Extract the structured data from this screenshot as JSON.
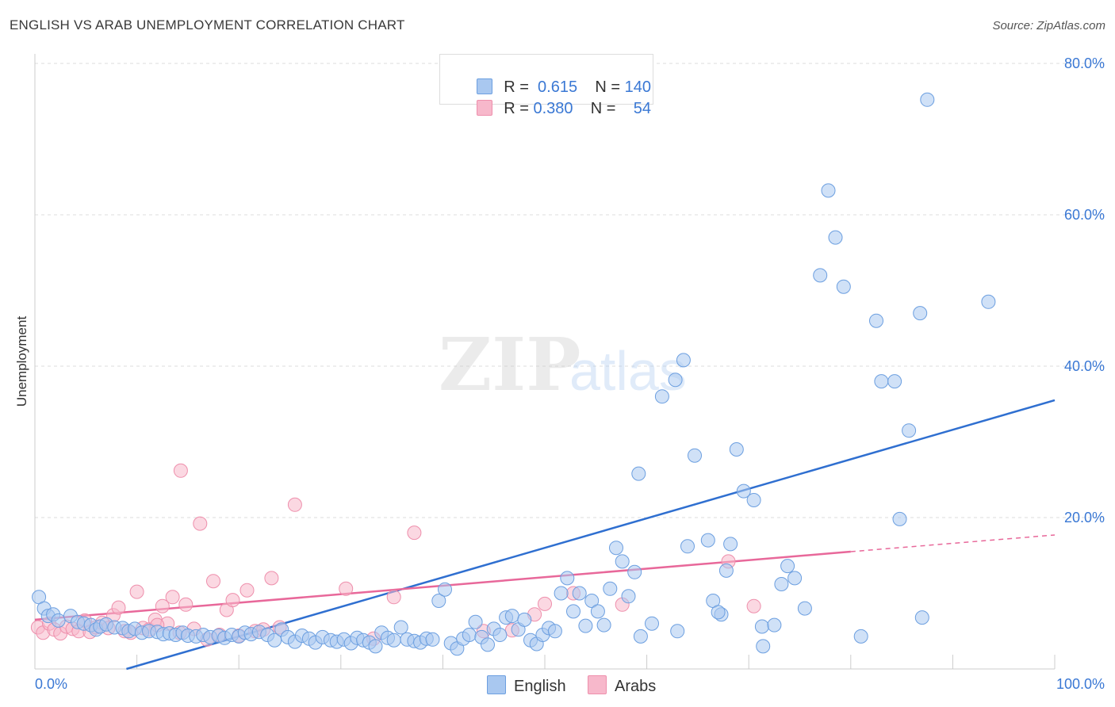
{
  "header": {
    "title": "ENGLISH VS ARAB UNEMPLOYMENT CORRELATION CHART",
    "source": "Source: ZipAtlas.com"
  },
  "watermark": {
    "zip": "ZIP",
    "atlas": "atlas"
  },
  "legend": {
    "rows": [
      {
        "r_label": "R =",
        "r_value": "0.615",
        "n_label": "N =",
        "n_value": "140"
      },
      {
        "r_label": "R =",
        "r_value": "0.380",
        "n_label": "N =",
        "n_value": "54"
      }
    ]
  },
  "bottom_legend": {
    "english": "English",
    "arabs": "Arabs"
  },
  "colors": {
    "english_fill": "#a9c8f0",
    "english_stroke": "#6c9fe0",
    "english_line": "#2f6fd0",
    "arabs_fill": "#f7b8cb",
    "arabs_stroke": "#ee8fac",
    "arabs_line": "#e8689a",
    "tick_color": "#3a78d4",
    "grid": "#dcdcdc"
  },
  "chart_data": {
    "type": "scatter",
    "title": "ENGLISH VS ARAB UNEMPLOYMENT CORRELATION CHART",
    "xlabel": "",
    "ylabel": "Unemployment",
    "xlim": [
      0,
      100
    ],
    "ylim": [
      0,
      80
    ],
    "x_tick_labels": [
      "0.0%",
      "100.0%"
    ],
    "y_ticks": [
      20,
      40,
      60,
      80
    ],
    "y_tick_labels": [
      "20.0%",
      "40.0%",
      "60.0%",
      "80.0%"
    ],
    "grid": true,
    "series": [
      {
        "name": "English",
        "R": 0.615,
        "N": 140,
        "trend": {
          "x": [
            0,
            100
          ],
          "y": [
            -3.5,
            35.5
          ]
        },
        "points": [
          [
            0.4,
            9.5
          ],
          [
            0.9,
            8.0
          ],
          [
            1.3,
            7.0
          ],
          [
            1.8,
            7.2
          ],
          [
            2.3,
            6.4
          ],
          [
            3.5,
            7.0
          ],
          [
            4.2,
            6.2
          ],
          [
            4.8,
            6.0
          ],
          [
            5.5,
            5.8
          ],
          [
            6.0,
            5.2
          ],
          [
            6.4,
            5.6
          ],
          [
            7.0,
            5.9
          ],
          [
            7.8,
            5.5
          ],
          [
            8.6,
            5.4
          ],
          [
            9.2,
            5.0
          ],
          [
            9.8,
            5.3
          ],
          [
            10.5,
            4.8
          ],
          [
            11.2,
            5.0
          ],
          [
            12.0,
            4.9
          ],
          [
            12.6,
            4.6
          ],
          [
            13.2,
            4.7
          ],
          [
            13.8,
            4.5
          ],
          [
            14.5,
            4.8
          ],
          [
            15.0,
            4.4
          ],
          [
            15.8,
            4.3
          ],
          [
            16.5,
            4.5
          ],
          [
            17.2,
            4.2
          ],
          [
            18.0,
            4.4
          ],
          [
            18.6,
            4.1
          ],
          [
            19.3,
            4.5
          ],
          [
            20.0,
            4.3
          ],
          [
            20.6,
            4.8
          ],
          [
            21.2,
            4.6
          ],
          [
            22.0,
            4.9
          ],
          [
            22.8,
            4.5
          ],
          [
            23.5,
            3.8
          ],
          [
            24.2,
            5.2
          ],
          [
            24.8,
            4.2
          ],
          [
            25.5,
            3.6
          ],
          [
            26.2,
            4.4
          ],
          [
            26.9,
            4.0
          ],
          [
            27.5,
            3.5
          ],
          [
            28.2,
            4.2
          ],
          [
            29.0,
            3.8
          ],
          [
            29.6,
            3.6
          ],
          [
            30.3,
            3.9
          ],
          [
            31.0,
            3.4
          ],
          [
            31.6,
            4.1
          ],
          [
            32.2,
            3.8
          ],
          [
            32.8,
            3.5
          ],
          [
            33.4,
            3.0
          ],
          [
            34.0,
            4.8
          ],
          [
            34.6,
            4.1
          ],
          [
            35.2,
            3.8
          ],
          [
            35.9,
            5.5
          ],
          [
            36.5,
            3.9
          ],
          [
            37.2,
            3.7
          ],
          [
            37.8,
            3.5
          ],
          [
            38.4,
            4.0
          ],
          [
            39.0,
            3.9
          ],
          [
            39.6,
            9.0
          ],
          [
            40.2,
            10.5
          ],
          [
            40.8,
            3.4
          ],
          [
            41.4,
            2.7
          ],
          [
            42.0,
            4.0
          ],
          [
            42.6,
            4.5
          ],
          [
            43.2,
            6.2
          ],
          [
            43.8,
            4.2
          ],
          [
            44.4,
            3.2
          ],
          [
            45.0,
            5.3
          ],
          [
            45.6,
            4.5
          ],
          [
            46.2,
            6.8
          ],
          [
            46.8,
            7.0
          ],
          [
            47.4,
            5.2
          ],
          [
            48.0,
            6.5
          ],
          [
            48.6,
            3.8
          ],
          [
            49.2,
            3.3
          ],
          [
            49.8,
            4.5
          ],
          [
            50.4,
            5.4
          ],
          [
            51.0,
            5.0
          ],
          [
            51.6,
            10.0
          ],
          [
            52.2,
            12.0
          ],
          [
            52.8,
            7.6
          ],
          [
            53.4,
            10.0
          ],
          [
            54.0,
            5.7
          ],
          [
            54.6,
            9.0
          ],
          [
            55.2,
            7.6
          ],
          [
            55.8,
            5.8
          ],
          [
            56.4,
            10.6
          ],
          [
            57.0,
            16.0
          ],
          [
            57.6,
            14.2
          ],
          [
            58.2,
            9.6
          ],
          [
            58.8,
            12.8
          ],
          [
            59.4,
            4.3
          ],
          [
            59.2,
            25.8
          ],
          [
            61.5,
            36.0
          ],
          [
            62.8,
            38.2
          ],
          [
            63.6,
            40.8
          ],
          [
            64.7,
            28.2
          ],
          [
            66.0,
            17.0
          ],
          [
            66.5,
            9.0
          ],
          [
            67.3,
            7.2
          ],
          [
            67.8,
            13.0
          ],
          [
            68.8,
            29.0
          ],
          [
            69.5,
            23.5
          ],
          [
            70.5,
            22.3
          ],
          [
            71.3,
            5.6
          ],
          [
            71.4,
            3.0
          ],
          [
            73.2,
            11.2
          ],
          [
            73.8,
            13.6
          ],
          [
            68.2,
            16.5
          ],
          [
            64.0,
            16.2
          ],
          [
            63.0,
            5.0
          ],
          [
            67.0,
            7.5
          ],
          [
            77.0,
            52.0
          ],
          [
            77.8,
            63.2
          ],
          [
            78.5,
            57.0
          ],
          [
            79.3,
            50.5
          ],
          [
            82.5,
            46.0
          ],
          [
            83.0,
            38.0
          ],
          [
            84.3,
            38.0
          ],
          [
            84.8,
            19.8
          ],
          [
            85.7,
            31.5
          ],
          [
            86.8,
            47.0
          ],
          [
            87.5,
            75.2
          ],
          [
            93.5,
            48.5
          ],
          [
            87.0,
            6.8
          ],
          [
            81.0,
            4.3
          ],
          [
            74.5,
            12.0
          ],
          [
            75.5,
            8.0
          ],
          [
            72.5,
            5.8
          ],
          [
            60.5,
            6.0
          ]
        ]
      },
      {
        "name": "Arabs",
        "R": 0.38,
        "N": 54,
        "trend": {
          "x": [
            0,
            80
          ],
          "y": [
            6.5,
            15.5
          ]
        },
        "trend_extension": {
          "x": [
            80,
            100
          ],
          "y": [
            15.5,
            17.7
          ]
        },
        "points": [
          [
            0.3,
            5.5
          ],
          [
            0.8,
            4.8
          ],
          [
            1.4,
            6.0
          ],
          [
            1.9,
            5.2
          ],
          [
            2.5,
            4.7
          ],
          [
            3.1,
            5.6
          ],
          [
            3.7,
            5.3
          ],
          [
            4.3,
            5.0
          ],
          [
            4.9,
            6.4
          ],
          [
            5.4,
            4.9
          ],
          [
            6.0,
            5.5
          ],
          [
            6.6,
            6.1
          ],
          [
            7.2,
            5.4
          ],
          [
            7.7,
            7.1
          ],
          [
            8.2,
            8.1
          ],
          [
            8.8,
            5.0
          ],
          [
            9.4,
            4.8
          ],
          [
            10.0,
            10.2
          ],
          [
            10.6,
            5.4
          ],
          [
            11.2,
            5.2
          ],
          [
            11.8,
            6.5
          ],
          [
            12.5,
            8.3
          ],
          [
            13.0,
            6.0
          ],
          [
            13.5,
            9.5
          ],
          [
            14.2,
            4.8
          ],
          [
            14.3,
            26.2
          ],
          [
            14.8,
            8.5
          ],
          [
            15.6,
            5.3
          ],
          [
            16.2,
            19.2
          ],
          [
            16.9,
            3.9
          ],
          [
            17.5,
            11.6
          ],
          [
            18.1,
            4.5
          ],
          [
            18.8,
            7.8
          ],
          [
            19.4,
            9.1
          ],
          [
            20.0,
            4.4
          ],
          [
            20.8,
            10.4
          ],
          [
            21.6,
            5.0
          ],
          [
            22.4,
            5.2
          ],
          [
            23.2,
            12.0
          ],
          [
            25.5,
            21.7
          ],
          [
            30.5,
            10.6
          ],
          [
            33.2,
            4.0
          ],
          [
            35.2,
            9.5
          ],
          [
            37.2,
            18.0
          ],
          [
            44.0,
            5.0
          ],
          [
            46.8,
            5.1
          ],
          [
            49.0,
            7.2
          ],
          [
            50.0,
            8.6
          ],
          [
            52.8,
            10.0
          ],
          [
            57.6,
            8.5
          ],
          [
            68.0,
            14.2
          ],
          [
            70.5,
            8.3
          ],
          [
            24.0,
            5.5
          ],
          [
            12.0,
            5.8
          ]
        ]
      }
    ]
  }
}
